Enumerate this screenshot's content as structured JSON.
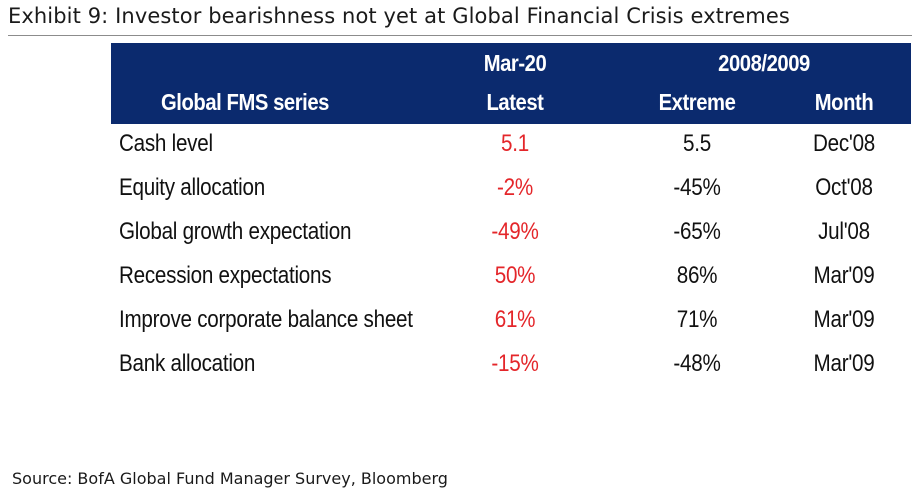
{
  "title": "Exhibit 9: Investor bearishness not yet at Global Financial Crisis extremes",
  "source": "Source: BofA Global Fund Manager Survey, Bloomberg",
  "colors": {
    "header_bg": "#0b2a6e",
    "latest_text": "#e4262a"
  },
  "table": {
    "header": {
      "series": "Global FMS series",
      "latest_group": "Mar-20",
      "latest": "Latest",
      "period_group": "2008/2009",
      "extreme": "Extreme",
      "month": "Month"
    },
    "rows": [
      {
        "series": "Cash level",
        "latest": "5.1",
        "extreme": "5.5",
        "month": "Dec'08"
      },
      {
        "series": "Equity allocation",
        "latest": "-2%",
        "extreme": "-45%",
        "month": "Oct'08"
      },
      {
        "series": "Global growth expectation",
        "latest": "-49%",
        "extreme": "-65%",
        "month": "Jul'08"
      },
      {
        "series": "Recession expectations",
        "latest": "50%",
        "extreme": "86%",
        "month": "Mar'09"
      },
      {
        "series": "Improve corporate balance sheet",
        "latest": "61%",
        "extreme": "71%",
        "month": "Mar'09"
      },
      {
        "series": "Bank allocation",
        "latest": "-15%",
        "extreme": "-48%",
        "month": "Mar'09"
      }
    ]
  }
}
